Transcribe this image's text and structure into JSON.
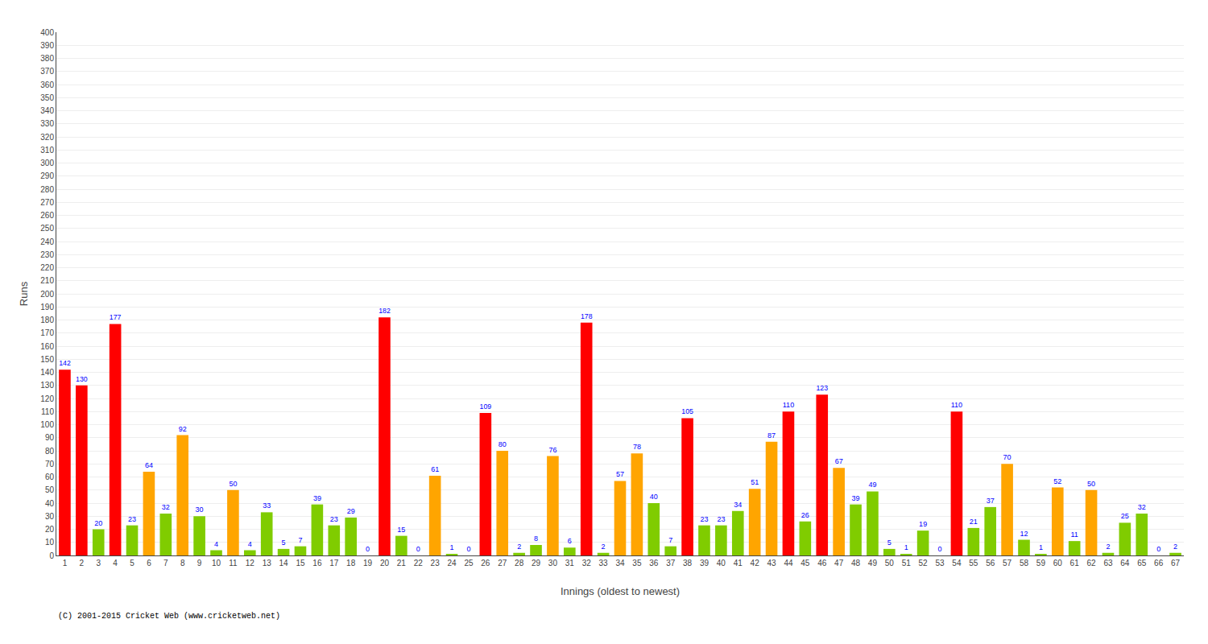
{
  "chart_data": {
    "type": "bar",
    "xlabel": "Innings (oldest to newest)",
    "ylabel": "Runs",
    "annotations": [
      "(C) 2001-2015 Cricket Web (www.cricketweb.net)"
    ],
    "categories": [
      "1",
      "2",
      "3",
      "4",
      "5",
      "6",
      "7",
      "8",
      "9",
      "10",
      "11",
      "12",
      "13",
      "14",
      "15",
      "16",
      "17",
      "18",
      "19",
      "20",
      "21",
      "22",
      "23",
      "24",
      "25",
      "26",
      "27",
      "28",
      "29",
      "30",
      "31",
      "32",
      "33",
      "34",
      "35",
      "36",
      "37",
      "38",
      "39",
      "40",
      "41",
      "42",
      "43",
      "44",
      "45",
      "46",
      "47",
      "48",
      "49",
      "50",
      "51",
      "52",
      "53",
      "54",
      "55",
      "56",
      "57",
      "58",
      "59",
      "60",
      "61",
      "62",
      "63",
      "64",
      "65",
      "66",
      "67"
    ],
    "values": [
      142,
      130,
      20,
      177,
      23,
      64,
      32,
      92,
      30,
      4,
      50,
      4,
      33,
      5,
      7,
      39,
      23,
      29,
      0,
      182,
      15,
      0,
      61,
      1,
      0,
      109,
      80,
      2,
      8,
      76,
      6,
      178,
      2,
      57,
      78,
      40,
      7,
      105,
      23,
      23,
      34,
      51,
      87,
      110,
      26,
      123,
      67,
      39,
      49,
      5,
      1,
      19,
      0,
      110,
      21,
      37,
      70,
      12,
      1,
      52,
      11,
      50,
      2,
      25,
      32,
      0,
      2
    ],
    "colors": [
      "#ff0000",
      "#ff0000",
      "#80cc00",
      "#ff0000",
      "#80cc00",
      "#ffa500",
      "#80cc00",
      "#ffa500",
      "#80cc00",
      "#80cc00",
      "#ffa500",
      "#80cc00",
      "#80cc00",
      "#80cc00",
      "#80cc00",
      "#80cc00",
      "#80cc00",
      "#80cc00",
      "#80cc00",
      "#ff0000",
      "#80cc00",
      "#80cc00",
      "#ffa500",
      "#80cc00",
      "#80cc00",
      "#ff0000",
      "#ffa500",
      "#80cc00",
      "#80cc00",
      "#ffa500",
      "#80cc00",
      "#ff0000",
      "#80cc00",
      "#ffa500",
      "#ffa500",
      "#80cc00",
      "#80cc00",
      "#ff0000",
      "#80cc00",
      "#80cc00",
      "#80cc00",
      "#ffa500",
      "#ffa500",
      "#ff0000",
      "#80cc00",
      "#ff0000",
      "#ffa500",
      "#80cc00",
      "#80cc00",
      "#80cc00",
      "#80cc00",
      "#80cc00",
      "#80cc00",
      "#ff0000",
      "#80cc00",
      "#80cc00",
      "#ffa500",
      "#80cc00",
      "#80cc00",
      "#ffa500",
      "#80cc00",
      "#ffa500",
      "#80cc00",
      "#80cc00",
      "#80cc00",
      "#80cc00",
      "#80cc00"
    ],
    "ylim": [
      0,
      400
    ],
    "yticks": [
      0,
      10,
      20,
      30,
      40,
      50,
      60,
      70,
      80,
      90,
      100,
      110,
      120,
      130,
      140,
      150,
      160,
      170,
      180,
      190,
      200,
      210,
      220,
      230,
      240,
      250,
      260,
      270,
      280,
      290,
      300,
      310,
      320,
      330,
      340,
      350,
      360,
      370,
      380,
      390,
      400
    ],
    "grid": true,
    "data_labels": true
  }
}
